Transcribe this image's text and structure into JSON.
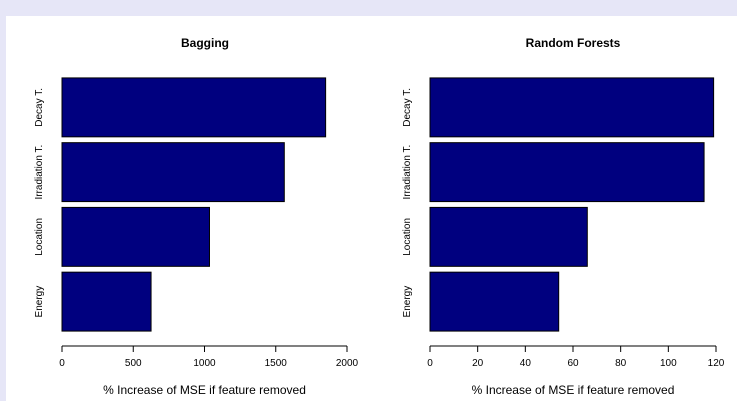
{
  "chart_data": [
    {
      "type": "bar",
      "orientation": "horizontal",
      "title": "Bagging",
      "categories": [
        "Decay T.",
        "Irradiation T.",
        "Location",
        "Energy"
      ],
      "values": [
        1850,
        1560,
        1035,
        625
      ],
      "xlim": [
        0,
        2000
      ],
      "xticks": [
        0,
        500,
        1000,
        1500,
        2000
      ],
      "xlabel": "% Increase of MSE if feature removed",
      "ylabel": "",
      "bar_color": "#00007f",
      "grid": false
    },
    {
      "type": "bar",
      "orientation": "horizontal",
      "title": "Random Forests",
      "categories": [
        "Decay T.",
        "Irradiation T.",
        "Location",
        "Energy"
      ],
      "values": [
        119,
        115,
        66,
        54
      ],
      "xlim": [
        0,
        120
      ],
      "xticks": [
        0,
        20,
        40,
        60,
        80,
        100,
        120
      ],
      "xlabel": "% Increase of MSE if feature removed",
      "ylabel": "",
      "bar_color": "#00007f",
      "grid": false
    }
  ]
}
